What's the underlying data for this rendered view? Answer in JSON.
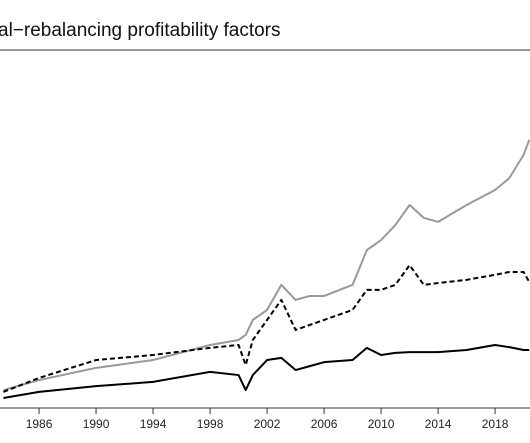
{
  "chart_data": {
    "type": "line",
    "title": "al−rebalancing profitability factors",
    "x": [
      1983.5,
      1986,
      1990,
      1994,
      1998,
      2000,
      2000.5,
      2001,
      2002,
      2003,
      2004,
      2005,
      2006,
      2008,
      2009,
      2010,
      2011,
      2012,
      2013,
      2014,
      2016,
      2018,
      2019,
      2020,
      2020.4
    ],
    "series": [
      {
        "color": "#999999",
        "dash": false,
        "values": [
          5.0,
          7.8,
          11.2,
          13.4,
          17.6,
          19.0,
          20.4,
          24.6,
          27.4,
          34.4,
          30.2,
          31.3,
          31.3,
          34.4,
          44.1,
          46.9,
          51.1,
          56.7,
          53.1,
          52.0,
          56.7,
          60.9,
          64.2,
          70.7,
          74.9
        ]
      },
      {
        "color": "#000000",
        "dash": true,
        "values": [
          4.5,
          8.4,
          13.4,
          14.8,
          16.8,
          17.6,
          12.0,
          19.0,
          24.6,
          30.2,
          21.8,
          23.2,
          24.6,
          27.4,
          33.0,
          33.0,
          34.4,
          39.9,
          34.4,
          34.9,
          35.8,
          37.2,
          38.0,
          38.0,
          35.2
        ]
      },
      {
        "color": "#000000",
        "dash": false,
        "values": [
          2.8,
          4.5,
          6.1,
          7.3,
          10.1,
          9.2,
          5.0,
          9.2,
          13.4,
          14.0,
          10.6,
          11.7,
          12.8,
          13.4,
          16.8,
          14.8,
          15.4,
          15.6,
          15.6,
          15.6,
          16.2,
          17.6,
          17.0,
          16.2,
          16.2
        ]
      }
    ],
    "xlim": [
      1983.26,
      2020.45
    ],
    "xticks": [
      1986,
      1990,
      1994,
      1998,
      2002,
      2006,
      2010,
      2014,
      2018
    ],
    "ylim": [
      0,
      100
    ]
  }
}
